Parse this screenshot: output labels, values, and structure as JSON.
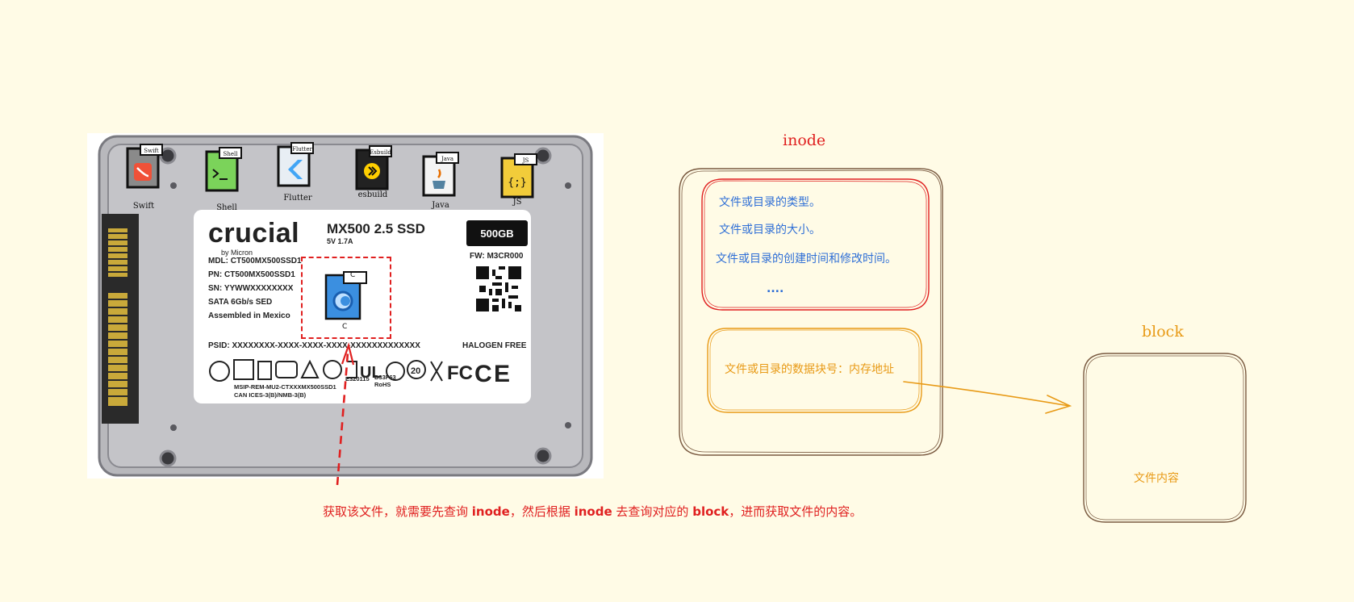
{
  "ssd": {
    "brand": "crucial",
    "brand_sub": "by Micron",
    "model": "MX500  2.5  SSD",
    "power": "5V     1.7A",
    "capacity": "500GB",
    "firmware": "FW: M3CR000",
    "specs": [
      "MDL: CT500MX500SSD1",
      "PN: CT500MX500SSD1",
      "SN: YYWWXXXXXXXX",
      "SATA 6Gb/s SED",
      "Assembled in Mexico"
    ],
    "psid": "PSID: XXXXXXXX-XXXX-XXXX-XXXX-XXXXXXXXXXXXX",
    "halogen": "HALOGEN FREE",
    "msip": [
      "MSIP-REM-MU2-CTXXXMX500SSD1",
      "CAN ICES-3(B)/NMB-3(B)"
    ],
    "e320": "E320115",
    "d33": [
      "D33F63",
      "RoHS"
    ],
    "languages": [
      {
        "tag": "Swift",
        "caption": "Swift",
        "color": "#8a8a8a",
        "glyph": "swift-icon"
      },
      {
        "tag": "Shell",
        "caption": "Shell",
        "color": "#7bd35a",
        "glyph": "terminal-icon"
      },
      {
        "tag": "Flutter",
        "caption": "Flutter",
        "color": "#e8eef4",
        "glyph": "flutter-icon"
      },
      {
        "tag": "Esbuild",
        "caption": "esbuild",
        "color": "#222222",
        "glyph": "esbuild-icon"
      },
      {
        "tag": "Java",
        "caption": "Java",
        "color": "#f4f4f4",
        "glyph": "java-icon"
      },
      {
        "tag": "JS",
        "caption": "JS",
        "color": "#f2cc3a",
        "glyph": "js-icon"
      }
    ],
    "file_tag": "C",
    "file_caption": "C"
  },
  "annotation": {
    "p1": "获取该文件，就需要先查询 ",
    "k1": "inode",
    "p2": "，然后根据 ",
    "k2": "inode",
    "p3": " 去查询对应的 ",
    "k3": "block",
    "p4": "，进而获取文件的内容。"
  },
  "inode": {
    "title": "inode",
    "items": [
      "文件或目录的类型。",
      "文件或目录的大小。",
      "文件或目录的创建时间和修改时间。"
    ],
    "ellipsis": "....",
    "block_address": "文件或目录的数据块号：内存地址"
  },
  "block": {
    "title": "block",
    "content": "文件内容"
  },
  "colors": {
    "background": "#fffbe6",
    "red": "#e02020",
    "orange": "#e89a16",
    "blue": "#2f6fd6",
    "brown": "#7a5a40"
  }
}
